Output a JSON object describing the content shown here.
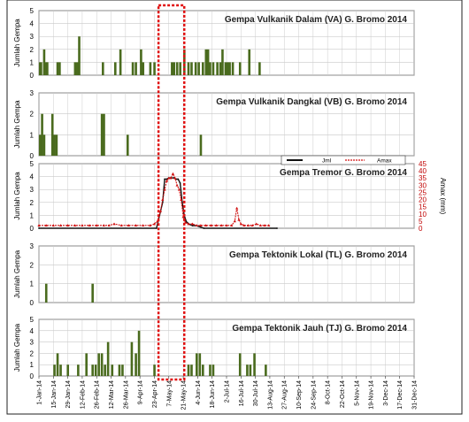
{
  "figure": {
    "x_tick_labels": [
      "1-Jan-14",
      "15-Jan-14",
      "29-Jan-14",
      "12-Feb-14",
      "26-Feb-14",
      "12-Mar-14",
      "26-Mar-14",
      "9-Apr-14",
      "23-Apr-14",
      "7-May-14",
      "21-May-14",
      "4-Jun-14",
      "18-Jun-14",
      "2-Jul-14",
      "16-Jul-14",
      "30-Jul-14",
      "13-Aug-14",
      "27-Aug-14",
      "10-Sep-14",
      "24-Sep-14",
      "8-Oct-14",
      "22-Oct-14",
      "5-Nov-14",
      "19-Nov-14",
      "3-Dec-14",
      "17-Dec-14",
      "31-Dec-14"
    ],
    "ylabel": "Jumlah Gempa",
    "ylabel_right": "Amax (mm)",
    "highlight_color": "#e01010",
    "bar_color": "#4a6b1e"
  },
  "chart_data": [
    {
      "type": "bar",
      "title": "Gempa Vulkanik Dalam (VA) G. Bromo 2014",
      "ylabel": "Jumlah Gempa",
      "ylim": [
        0,
        5
      ],
      "yticks": [
        0,
        1,
        2,
        3,
        4,
        5
      ],
      "grid": true,
      "x": [
        "2014-01-02",
        "2014-01-03",
        "2014-01-06",
        "2014-01-08",
        "2014-01-09",
        "2014-01-19",
        "2014-01-21",
        "2014-02-05",
        "2014-02-07",
        "2014-02-09",
        "2014-03-04",
        "2014-03-16",
        "2014-03-21",
        "2014-04-02",
        "2014-04-05",
        "2014-04-10",
        "2014-04-12",
        "2014-04-19",
        "2014-04-23",
        "2014-05-10",
        "2014-05-12",
        "2014-05-15",
        "2014-05-18",
        "2014-05-22",
        "2014-05-26",
        "2014-05-29",
        "2014-06-02",
        "2014-06-05",
        "2014-06-09",
        "2014-06-12",
        "2014-06-14",
        "2014-06-16",
        "2014-06-19",
        "2014-06-23",
        "2014-06-26",
        "2014-06-28",
        "2014-07-01",
        "2014-07-03",
        "2014-07-05",
        "2014-07-08",
        "2014-07-15",
        "2014-07-24",
        "2014-08-03"
      ],
      "values": [
        1,
        1,
        2,
        1,
        1,
        1,
        1,
        1,
        1,
        3,
        1,
        1,
        2,
        1,
        1,
        2,
        1,
        1,
        1,
        1,
        1,
        1,
        1,
        2,
        1,
        1,
        1,
        1,
        1,
        2,
        2,
        1,
        1,
        1,
        1,
        2,
        1,
        1,
        1,
        1,
        1,
        2,
        1
      ]
    },
    {
      "type": "bar",
      "title": "Gempa Vulkanik Dangkal (VB) G. Bromo 2014",
      "ylabel": "Jumlah Gempa",
      "ylim": [
        0,
        3
      ],
      "yticks": [
        0,
        1,
        2,
        3
      ],
      "grid": true,
      "x": [
        "2014-01-02",
        "2014-01-04",
        "2014-01-06",
        "2014-01-14",
        "2014-01-16",
        "2014-01-18",
        "2014-03-03",
        "2014-03-05",
        "2014-03-28",
        "2014-06-07"
      ],
      "values": [
        1,
        2,
        1,
        2,
        1,
        1,
        2,
        2,
        1,
        1
      ]
    },
    {
      "type": "line",
      "title": "Gempa Tremor G. Bromo 2014",
      "ylabel": "Jumlah Gempa",
      "ylabel_right": "Amax (mm)",
      "ylim": [
        0,
        5
      ],
      "yticks": [
        0,
        1,
        2,
        3,
        4,
        5
      ],
      "ylim_right": [
        0,
        45
      ],
      "yticks_right": [
        0,
        5,
        10,
        15,
        20,
        25,
        30,
        35,
        40,
        45
      ],
      "legend": [
        "Jml",
        "Amax"
      ],
      "legend_loc": "top-right",
      "series": [
        {
          "name": "Jml",
          "x": [
            "2014-01-01",
            "2014-04-25",
            "2014-04-28",
            "2014-05-01",
            "2014-05-03",
            "2014-05-05",
            "2014-05-07",
            "2014-05-09",
            "2014-05-12",
            "2014-05-14",
            "2014-05-16",
            "2014-05-18",
            "2014-05-20",
            "2014-05-22",
            "2014-05-24",
            "2014-05-27",
            "2014-05-30",
            "2014-06-03",
            "2014-06-10",
            "2014-08-20"
          ],
          "values": [
            0,
            0,
            1,
            2,
            3.8,
            3.8,
            3.9,
            3.9,
            3.9,
            3.8,
            3.8,
            3.5,
            2,
            1,
            0.5,
            0.3,
            0.2,
            0.2,
            0,
            0
          ]
        },
        {
          "name": "Amax",
          "x": [
            "2014-01-01",
            "2014-01-08",
            "2014-01-15",
            "2014-01-22",
            "2014-01-29",
            "2014-02-05",
            "2014-02-12",
            "2014-02-19",
            "2014-02-26",
            "2014-03-05",
            "2014-03-10",
            "2014-03-15",
            "2014-03-22",
            "2014-03-29",
            "2014-04-05",
            "2014-04-12",
            "2014-04-19",
            "2014-04-23",
            "2014-04-26",
            "2014-04-29",
            "2014-05-01",
            "2014-05-03",
            "2014-05-05",
            "2014-05-07",
            "2014-05-09",
            "2014-05-11",
            "2014-05-13",
            "2014-05-15",
            "2014-05-17",
            "2014-05-19",
            "2014-05-21",
            "2014-05-23",
            "2014-05-26",
            "2014-05-30",
            "2014-06-03",
            "2014-06-07",
            "2014-06-12",
            "2014-06-17",
            "2014-06-22",
            "2014-06-27",
            "2014-07-02",
            "2014-07-07",
            "2014-07-10",
            "2014-07-12",
            "2014-07-14",
            "2014-07-16",
            "2014-07-19",
            "2014-07-23",
            "2014-07-27",
            "2014-07-31",
            "2014-08-04",
            "2014-08-08",
            "2014-08-12"
          ],
          "values": [
            2,
            2,
            2,
            2,
            2,
            2,
            2,
            2,
            2,
            2,
            2,
            3,
            2,
            2,
            2,
            2,
            2,
            3,
            5,
            12,
            20,
            27,
            33,
            35,
            35,
            38,
            35,
            30,
            27,
            20,
            8,
            4,
            3,
            3,
            2,
            2,
            2,
            2,
            2,
            2,
            2,
            2,
            5,
            14,
            6,
            3,
            2,
            2,
            2,
            3,
            2,
            2,
            2
          ]
        }
      ]
    },
    {
      "type": "bar",
      "title": "Gempa Tektonik Lokal (TL) G. Bromo 2014",
      "ylabel": "Jumlah Gempa",
      "ylim": [
        0,
        3
      ],
      "yticks": [
        0,
        1,
        2,
        3
      ],
      "grid": true,
      "x": [
        "2014-01-08",
        "2014-02-22"
      ],
      "values": [
        1,
        1
      ]
    },
    {
      "type": "bar",
      "title": "Gempa Tektonik Jauh (TJ) G. Bromo 2014",
      "ylabel": "Jumlah Gempa",
      "ylim": [
        0,
        5
      ],
      "yticks": [
        0,
        1,
        2,
        3,
        4,
        5
      ],
      "grid": true,
      "x": [
        "2014-01-16",
        "2014-01-19",
        "2014-01-22",
        "2014-01-29",
        "2014-02-08",
        "2014-02-16",
        "2014-02-22",
        "2014-02-25",
        "2014-02-28",
        "2014-03-03",
        "2014-03-06",
        "2014-03-09",
        "2014-03-13",
        "2014-03-20",
        "2014-03-23",
        "2014-04-01",
        "2014-04-05",
        "2014-04-08",
        "2014-04-23",
        "2014-05-26",
        "2014-05-29",
        "2014-06-03",
        "2014-06-06",
        "2014-06-09",
        "2014-06-16",
        "2014-06-19",
        "2014-07-15",
        "2014-07-22",
        "2014-07-25",
        "2014-07-29",
        "2014-08-09"
      ],
      "values": [
        1,
        2,
        1,
        1,
        1,
        2,
        1,
        1,
        2,
        2,
        1,
        3,
        1,
        1,
        1,
        3,
        2,
        4,
        1,
        1,
        1,
        2,
        2,
        1,
        1,
        1,
        2,
        1,
        1,
        2,
        1
      ]
    }
  ]
}
